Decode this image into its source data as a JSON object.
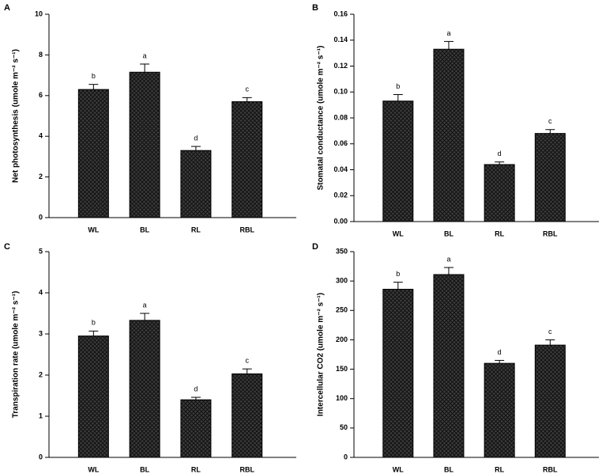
{
  "chart_data": [
    {
      "type": "bar",
      "panel": "A",
      "ylabel": "Net photosynthesis (umole m⁻² s⁻¹)",
      "categories": [
        "WL",
        "BL",
        "RL",
        "RBL"
      ],
      "values": [
        6.3,
        7.15,
        3.3,
        5.7
      ],
      "errors": [
        0.25,
        0.4,
        0.2,
        0.2
      ],
      "annotations": [
        "b",
        "a",
        "d",
        "c"
      ],
      "color": "#3c3c3c",
      "ylim": [
        0,
        10
      ],
      "yticks": [
        0,
        2,
        4,
        6,
        8,
        10
      ]
    },
    {
      "type": "bar",
      "panel": "B",
      "ylabel": "Stomatal conductance (umole m⁻² s⁻¹)",
      "categories": [
        "WL",
        "BL",
        "RL",
        "RBL"
      ],
      "values": [
        0.093,
        0.133,
        0.044,
        0.068
      ],
      "errors": [
        0.005,
        0.006,
        0.002,
        0.003
      ],
      "annotations": [
        "b",
        "a",
        "d",
        "c"
      ],
      "color": "#3c3c3c",
      "ylim": [
        0,
        0.16
      ],
      "yticks": [
        {
          "value": 0,
          "label": "0.00"
        },
        0.02,
        0.04,
        0.06,
        0.08,
        {
          "value": 0.1,
          "label": "0.10"
        },
        0.12,
        0.14,
        0.16
      ]
    },
    {
      "type": "bar",
      "panel": "C",
      "ylabel": "Transpiration rate (umole m⁻² s⁻¹)",
      "categories": [
        "WL",
        "BL",
        "RL",
        "RBL"
      ],
      "values": [
        2.95,
        3.33,
        1.4,
        2.03
      ],
      "errors": [
        0.12,
        0.17,
        0.06,
        0.12
      ],
      "annotations": [
        "b",
        "a",
        "d",
        "c"
      ],
      "color": "#3c3c3c",
      "ylim": [
        0,
        5
      ],
      "yticks": [
        0,
        1,
        2,
        3,
        4,
        5
      ]
    },
    {
      "type": "bar",
      "panel": "D",
      "ylabel": "Intercellular CO2 (umole m⁻² s⁻¹)",
      "categories": [
        "WL",
        "BL",
        "RL",
        "RBL"
      ],
      "values": [
        286,
        311,
        160,
        191
      ],
      "errors": [
        12,
        12,
        5,
        9
      ],
      "annotations": [
        "b",
        "a",
        "d",
        "c"
      ],
      "color": "#3c3c3c",
      "ylim": [
        0,
        350
      ],
      "yticks": [
        0,
        50,
        100,
        150,
        200,
        250,
        300,
        350
      ]
    }
  ]
}
